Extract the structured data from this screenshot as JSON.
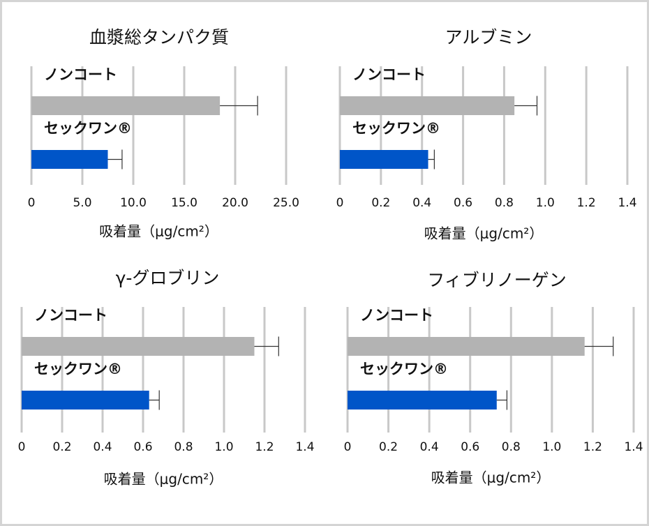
{
  "chart_data": [
    {
      "type": "hbar",
      "title": "血漿総タンパク質",
      "xlabel": "吸着量（μg/cm²）",
      "categories": [
        "ノンコート",
        "セックワン®"
      ],
      "values": [
        18.5,
        7.5
      ],
      "errors": [
        3.7,
        1.4
      ],
      "colors": [
        "#b3b3b3",
        "#0055c8"
      ],
      "xlim": [
        0,
        25
      ],
      "xticks": [
        0,
        {
          "value": 5,
          "label": "5.0"
        },
        {
          "value": 10,
          "label": "10.0"
        },
        {
          "value": 15,
          "label": "15.0"
        },
        {
          "value": 20,
          "label": "20.0"
        },
        {
          "value": 25,
          "label": "25.0"
        }
      ],
      "grid": true
    },
    {
      "type": "hbar",
      "title": "アルブミン",
      "xlabel": "吸着量（μg/cm²）",
      "categories": [
        "ノンコート",
        "セックワン®"
      ],
      "values": [
        0.85,
        0.43
      ],
      "errors": [
        0.11,
        0.03
      ],
      "colors": [
        "#b3b3b3",
        "#0055c8"
      ],
      "xlim": [
        0,
        1.4
      ],
      "xticks": [
        0,
        0.2,
        0.4,
        0.6,
        0.8,
        {
          "value": 1,
          "label": "1.0"
        },
        1.2,
        1.4
      ],
      "grid": true
    },
    {
      "type": "hbar",
      "title": "γ-グロブリン",
      "xlabel": "吸着量（μg/cm²）",
      "categories": [
        "ノンコート",
        "セックワン®"
      ],
      "values": [
        1.15,
        0.63
      ],
      "errors": [
        0.12,
        0.05
      ],
      "colors": [
        "#b3b3b3",
        "#0055c8"
      ],
      "xlim": [
        0,
        1.4
      ],
      "xticks": [
        0,
        0.2,
        0.4,
        0.6,
        0.8,
        {
          "value": 1,
          "label": "1.0"
        },
        1.2,
        1.4
      ],
      "grid": true
    },
    {
      "type": "hbar",
      "title": "フィブリノーゲン",
      "xlabel": "吸着量（μg/cm²）",
      "categories": [
        "ノンコート",
        "セックワン®"
      ],
      "values": [
        1.16,
        0.73
      ],
      "errors": [
        0.14,
        0.05
      ],
      "colors": [
        "#b3b3b3",
        "#0055c8"
      ],
      "xlim": [
        0,
        1.4
      ],
      "xticks": [
        0,
        0.2,
        0.4,
        0.6,
        0.8,
        {
          "value": 1,
          "label": "1.0"
        },
        1.2,
        1.4
      ],
      "grid": true
    }
  ]
}
